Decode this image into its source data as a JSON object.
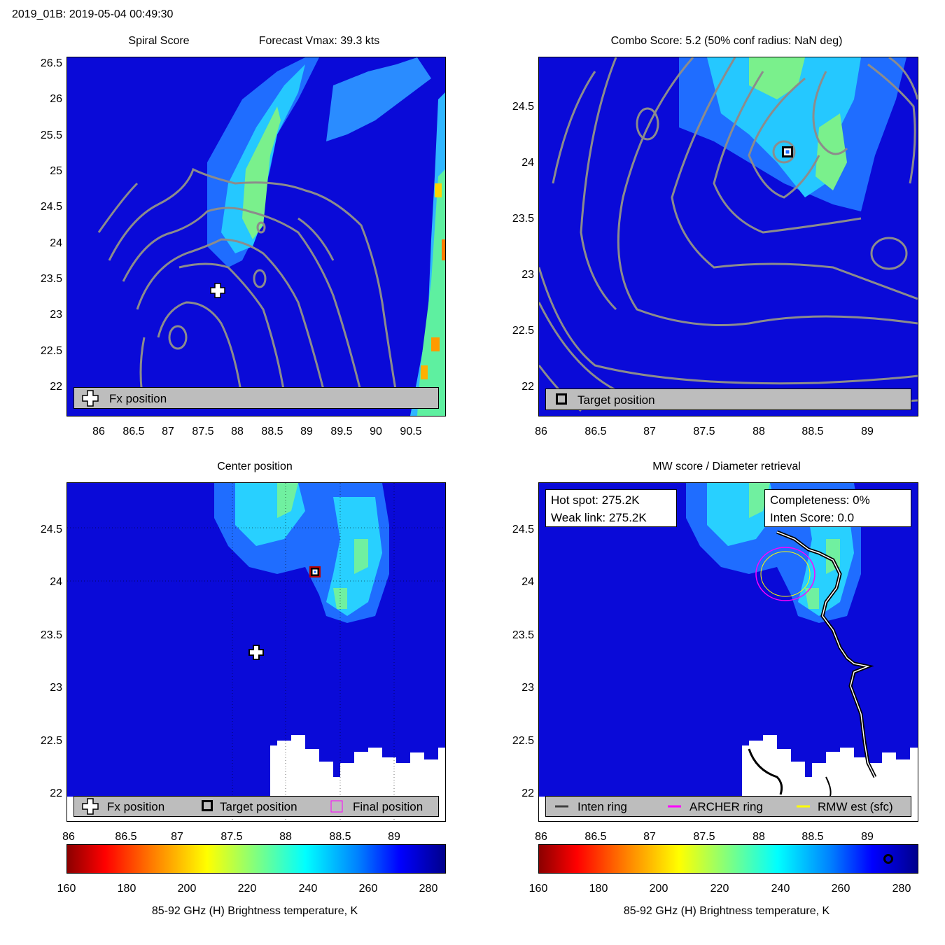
{
  "header": {
    "title": "2019_01B: 2019-05-04 00:49:30"
  },
  "panels": {
    "spiral": {
      "title_left": "Spiral Score",
      "title_right": "Forecast Vmax: 39.3 kts",
      "xticks": [
        "86",
        "86.5",
        "87",
        "87.5",
        "88",
        "88.5",
        "89",
        "89.5",
        "90",
        "90.5"
      ],
      "yticks": [
        "26.5",
        "26",
        "25.5",
        "25",
        "24.5",
        "24",
        "23.5",
        "23",
        "22.5",
        "22"
      ],
      "legend": "Fx position"
    },
    "combo": {
      "title": "Combo Score: 5.2  (50% conf radius: NaN deg)",
      "xticks": [
        "86",
        "86.5",
        "87",
        "87.5",
        "88",
        "88.5",
        "89"
      ],
      "yticks": [
        "24.5",
        "24",
        "23.5",
        "23",
        "22.5",
        "22"
      ],
      "legend": "Target position"
    },
    "center": {
      "title": "Center position",
      "xticks": [
        "86",
        "86.5",
        "87",
        "87.5",
        "88",
        "88.5",
        "89"
      ],
      "yticks": [
        "24.5",
        "24",
        "23.5",
        "23",
        "22.5",
        "22"
      ],
      "legend_fx": "Fx position",
      "legend_target": "Target position",
      "legend_final": "Final position"
    },
    "mw": {
      "title": "MW score / Diameter retrieval",
      "xticks": [
        "86",
        "86.5",
        "87",
        "87.5",
        "88",
        "88.5",
        "89"
      ],
      "yticks": [
        "24.5",
        "24",
        "23.5",
        "23",
        "22.5",
        "22"
      ],
      "hot_spot": "Hot spot: 275.2K",
      "weak_link": "Weak link: 275.2K",
      "completeness": "Completeness: 0%",
      "inten_score": "Inten Score: 0.0",
      "legend_inten": "Inten ring",
      "legend_archer": "ARCHER ring",
      "legend_rmw": "RMW est (sfc)"
    }
  },
  "colorbar": {
    "ticks": [
      "160",
      "180",
      "200",
      "220",
      "240",
      "260",
      "280"
    ],
    "label": "85-92 GHz (H) Brightness temperature, K"
  },
  "colors": {
    "background": "#0a0ad8",
    "contour": "#8c8c8c",
    "legend_bg": "#bdbdbd",
    "archer": "#ff00ff",
    "rmw": "#ffff00"
  },
  "chart_data": [
    {
      "type": "heatmap",
      "title": "Spiral Score",
      "subtitle": "Forecast Vmax: 39.3 kts",
      "xlim": [
        85.55,
        91.0
      ],
      "ylim": [
        21.6,
        26.6
      ],
      "markers": [
        {
          "name": "Fx position",
          "x": 87.7,
          "y": 23.35
        }
      ]
    },
    {
      "type": "heatmap",
      "title": "Combo Score: 5.2  (50% conf radius: NaN deg)",
      "xlim": [
        85.98,
        89.45
      ],
      "ylim": [
        21.75,
        24.95
      ],
      "markers": [
        {
          "name": "Target position",
          "x": 88.25,
          "y": 24.1
        }
      ]
    },
    {
      "type": "heatmap",
      "title": "Center position",
      "xlim": [
        86.0,
        89.45
      ],
      "ylim": [
        21.75,
        24.95
      ],
      "markers": [
        {
          "name": "Fx position",
          "x": 87.7,
          "y": 23.35
        },
        {
          "name": "Target position",
          "x": 88.25,
          "y": 24.1
        }
      ]
    },
    {
      "type": "heatmap",
      "title": "MW score / Diameter retrieval",
      "xlim": [
        86.0,
        89.45
      ],
      "ylim": [
        21.75,
        24.95
      ],
      "rings": [
        {
          "name": "ARCHER ring",
          "x": 88.25,
          "y": 24.05
        },
        {
          "name": "RMW est (sfc)",
          "x": 88.25,
          "y": 24.05
        }
      ]
    },
    {
      "type": "colorbar",
      "xlabel": "85-92 GHz (H) Brightness temperature, K",
      "range": [
        160,
        285
      ],
      "ticks": [
        160,
        180,
        200,
        220,
        240,
        260,
        280
      ]
    }
  ]
}
